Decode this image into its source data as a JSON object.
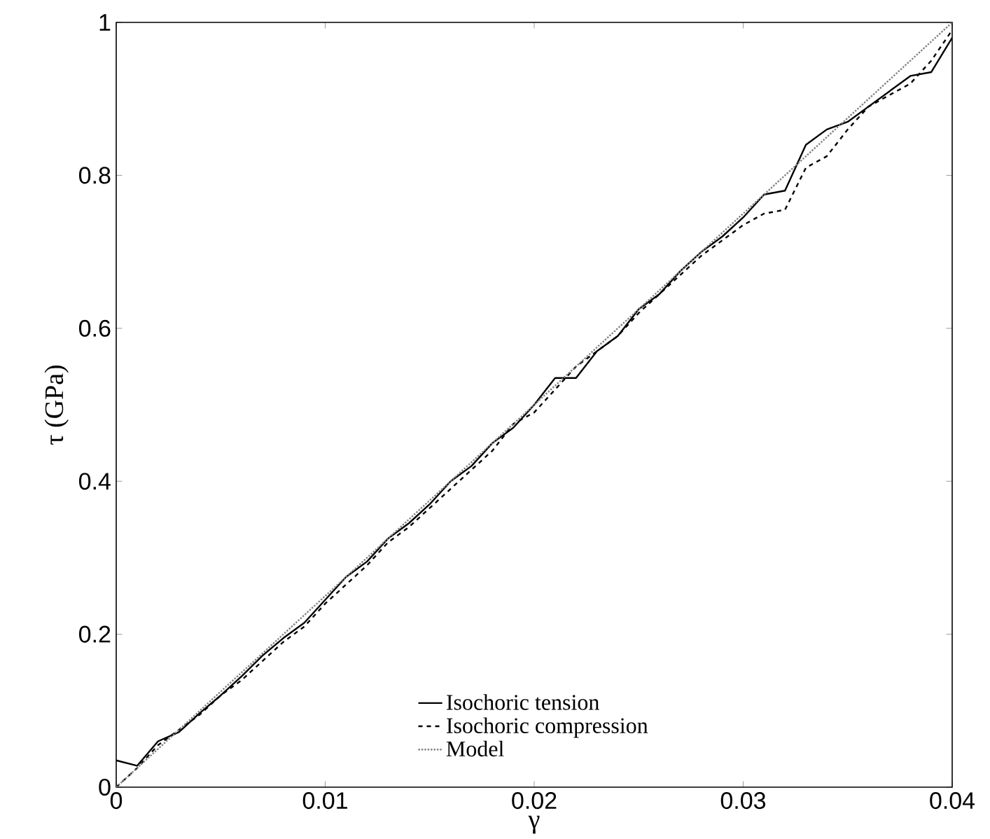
{
  "chart_data": {
    "type": "line",
    "xlabel": "γ",
    "ylabel": "τ (GPa)",
    "xlim": [
      0,
      0.04
    ],
    "ylim": [
      0,
      1
    ],
    "xticks": [
      0,
      0.01,
      0.02,
      0.03,
      0.04
    ],
    "yticks": [
      0,
      0.2,
      0.4,
      0.6,
      0.8,
      1
    ],
    "legend": "bottom",
    "grid": false,
    "marker": "none",
    "x": [
      0,
      0.001,
      0.002,
      0.003,
      0.004,
      0.005,
      0.006,
      0.007,
      0.008,
      0.009,
      0.01,
      0.011,
      0.012,
      0.013,
      0.014,
      0.015,
      0.016,
      0.017,
      0.018,
      0.019,
      0.02,
      0.021,
      0.022,
      0.023,
      0.024,
      0.025,
      0.026,
      0.027,
      0.028,
      0.029,
      0.03,
      0.031,
      0.032,
      0.033,
      0.034,
      0.035,
      0.036,
      0.037,
      0.038,
      0.039,
      0.04
    ],
    "series": [
      {
        "name": "Isochoric tension",
        "color": "#000000",
        "line_style": "solid",
        "values": [
          0.035,
          0.028,
          0.06,
          0.072,
          0.097,
          0.12,
          0.145,
          0.172,
          0.195,
          0.215,
          0.245,
          0.275,
          0.295,
          0.325,
          0.345,
          0.37,
          0.4,
          0.42,
          0.45,
          0.47,
          0.5,
          0.535,
          0.535,
          0.57,
          0.59,
          0.625,
          0.645,
          0.675,
          0.7,
          0.72,
          0.745,
          0.775,
          0.78,
          0.84,
          0.86,
          0.87,
          0.89,
          0.91,
          0.93,
          0.935,
          0.98
        ]
      },
      {
        "name": "Isochoric compression",
        "color": "#000000",
        "line_style": "dashed",
        "values": [
          0.0,
          0.025,
          0.055,
          0.075,
          0.095,
          0.12,
          0.14,
          0.165,
          0.19,
          0.21,
          0.24,
          0.265,
          0.29,
          0.32,
          0.34,
          0.365,
          0.39,
          0.415,
          0.44,
          0.475,
          0.49,
          0.52,
          0.55,
          0.57,
          0.59,
          0.62,
          0.645,
          0.67,
          0.695,
          0.715,
          0.735,
          0.75,
          0.755,
          0.81,
          0.825,
          0.86,
          0.89,
          0.905,
          0.92,
          0.95,
          0.99
        ]
      },
      {
        "name": "Model",
        "color": "#808080",
        "line_style": "dotted",
        "x": [
          0,
          0.04
        ],
        "values": [
          0,
          1
        ]
      }
    ]
  }
}
